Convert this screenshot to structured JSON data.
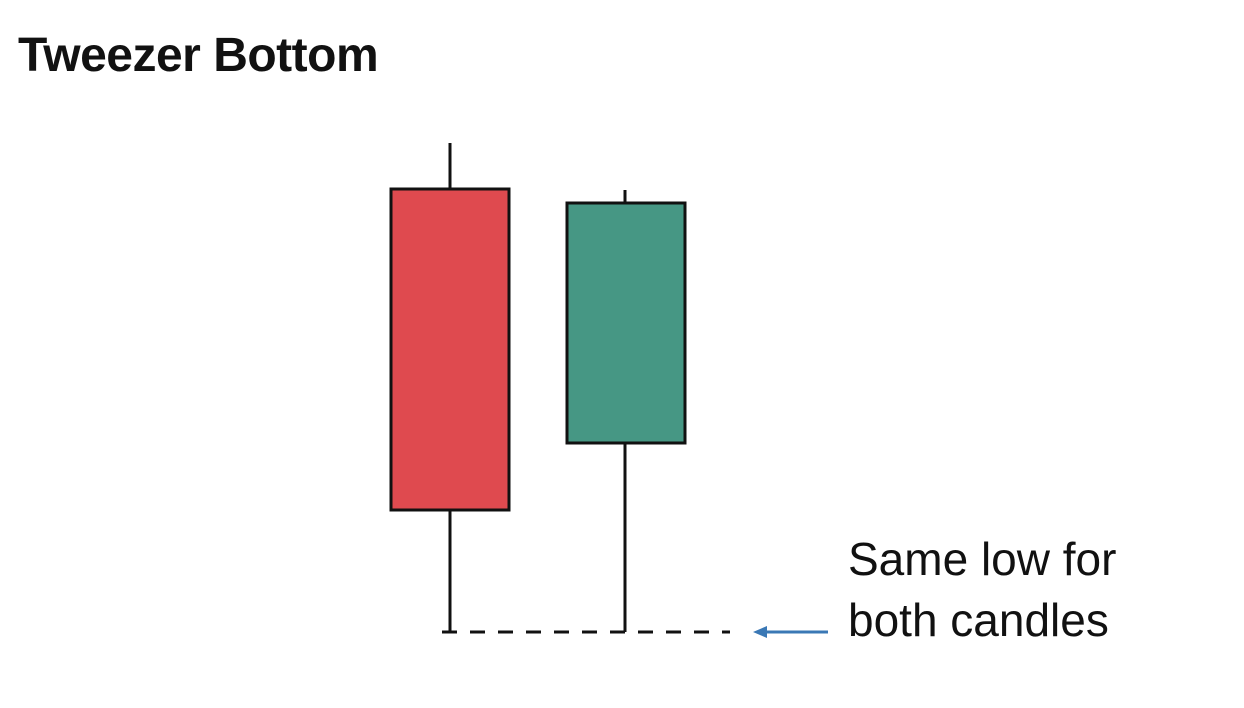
{
  "title": "Tweezer Bottom",
  "annotation": {
    "line1": "Same low for",
    "line2": "both candles"
  },
  "colors": {
    "bearish": "#df4a4f",
    "bullish": "#469784",
    "outline": "#111111",
    "arrow": "#3a78b5"
  }
}
